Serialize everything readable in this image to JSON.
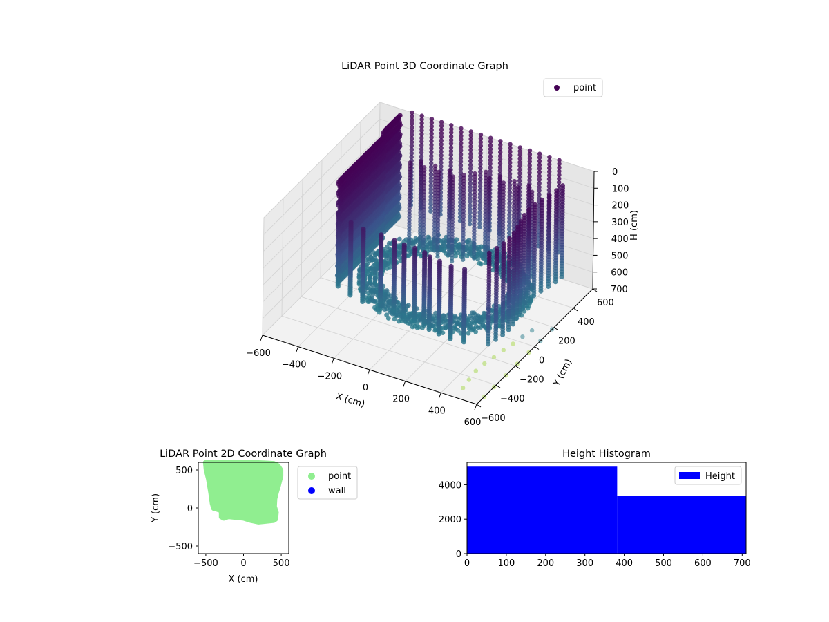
{
  "chart_data": [
    {
      "type": "scatter",
      "projection": "3d",
      "title": "LiDAR Point 3D Coordinate Graph",
      "xlabel": "X (cm)",
      "ylabel": "Y (cm)",
      "zlabel": "H (cm)",
      "xlim": [
        -600,
        600
      ],
      "ylim": [
        -600,
        600
      ],
      "zlim": [
        0,
        700
      ],
      "z_inverted": true,
      "xticks": [
        "−600",
        "−400",
        "−200",
        "0",
        "200",
        "400",
        "600"
      ],
      "yticks": [
        "−600",
        "−400",
        "−200",
        "0",
        "200",
        "400",
        "600"
      ],
      "zticks": [
        "0",
        "100",
        "200",
        "300",
        "400",
        "500",
        "600",
        "700"
      ],
      "grid": true,
      "legend": {
        "placement": "top-right",
        "entries": [
          {
            "label": "point",
            "color": "#440154"
          }
        ]
      },
      "colormap": "viridis",
      "series": [
        {
          "name": "point",
          "shape": "room-wall-columns",
          "x_range": [
            -500,
            450
          ],
          "y_range": [
            -200,
            600
          ],
          "h_range": [
            0,
            700
          ]
        },
        {
          "name": "point",
          "shape": "sparse-floor",
          "points": [
            [
              480,
              -520,
              690
            ],
            [
              470,
              -440,
              690
            ],
            [
              465,
              -360,
              685
            ],
            [
              470,
              -280,
              685
            ],
            [
              480,
              -200,
              690
            ],
            [
              490,
              -120,
              690
            ],
            [
              500,
              -40,
              695
            ],
            [
              510,
              40,
              695
            ],
            [
              520,
              120,
              700
            ],
            [
              600,
              -520,
              700
            ],
            [
              600,
              -420,
              700
            ],
            [
              600,
              -300,
              700
            ],
            [
              600,
              -180,
              700
            ],
            [
              600,
              -60,
              700
            ],
            [
              600,
              60,
              700
            ],
            [
              600,
              180,
              700
            ]
          ]
        }
      ]
    },
    {
      "type": "scatter",
      "title": "LiDAR Point 2D Coordinate Graph",
      "xlabel": "X (cm)",
      "ylabel": "Y (cm)",
      "xlim": [
        -600,
        600
      ],
      "ylim": [
        -600,
        600
      ],
      "xticks": [
        "−500",
        "0",
        "500"
      ],
      "yticks": [
        "−500",
        "0",
        "500"
      ],
      "legend": {
        "placement": "outside-right",
        "entries": [
          {
            "label": "point",
            "color": "#90ee90"
          },
          {
            "label": "wall",
            "color": "#0000ff"
          }
        ]
      },
      "series": [
        {
          "name": "point",
          "color": "#90ee90",
          "outline": [
            [
              -510,
              600
            ],
            [
              -440,
              600
            ],
            [
              -300,
              600
            ],
            [
              -200,
              600
            ],
            [
              -100,
              600
            ],
            [
              0,
              600
            ],
            [
              100,
              600
            ],
            [
              200,
              600
            ],
            [
              300,
              595
            ],
            [
              400,
              590
            ],
            [
              460,
              560
            ],
            [
              500,
              500
            ],
            [
              500,
              420
            ],
            [
              470,
              300
            ],
            [
              440,
              200
            ],
            [
              420,
              120
            ],
            [
              415,
              20
            ],
            [
              440,
              -60
            ],
            [
              430,
              -150
            ],
            [
              400,
              -170
            ],
            [
              300,
              -180
            ],
            [
              200,
              -190
            ],
            [
              150,
              -180
            ],
            [
              100,
              -170
            ],
            [
              0,
              -140
            ],
            [
              -200,
              -120
            ],
            [
              -260,
              -140
            ],
            [
              -300,
              -120
            ],
            [
              -300,
              -40
            ],
            [
              -360,
              -20
            ],
            [
              -400,
              -10
            ],
            [
              -420,
              60
            ],
            [
              -440,
              200
            ],
            [
              -470,
              380
            ],
            [
              -500,
              500
            ]
          ]
        },
        {
          "name": "wall",
          "color": "#0000ff",
          "points": []
        }
      ]
    },
    {
      "type": "bar",
      "variant": "histogram",
      "title": "Height Histogram",
      "xlim": [
        0,
        710
      ],
      "ylim": [
        0,
        5300
      ],
      "xticks": [
        "0",
        "100",
        "200",
        "300",
        "400",
        "500",
        "600",
        "700"
      ],
      "yticks": [
        "0",
        "2000",
        "4000"
      ],
      "legend": {
        "placement": "top-right",
        "entries": [
          {
            "label": "Height",
            "color": "#0000ff"
          }
        ]
      },
      "series": [
        {
          "name": "Height",
          "color": "#0000ff",
          "bins": [
            {
              "x0": 0,
              "x1": 382,
              "count": 5050
            },
            {
              "x0": 382,
              "x1": 710,
              "count": 3350
            }
          ]
        }
      ]
    }
  ]
}
